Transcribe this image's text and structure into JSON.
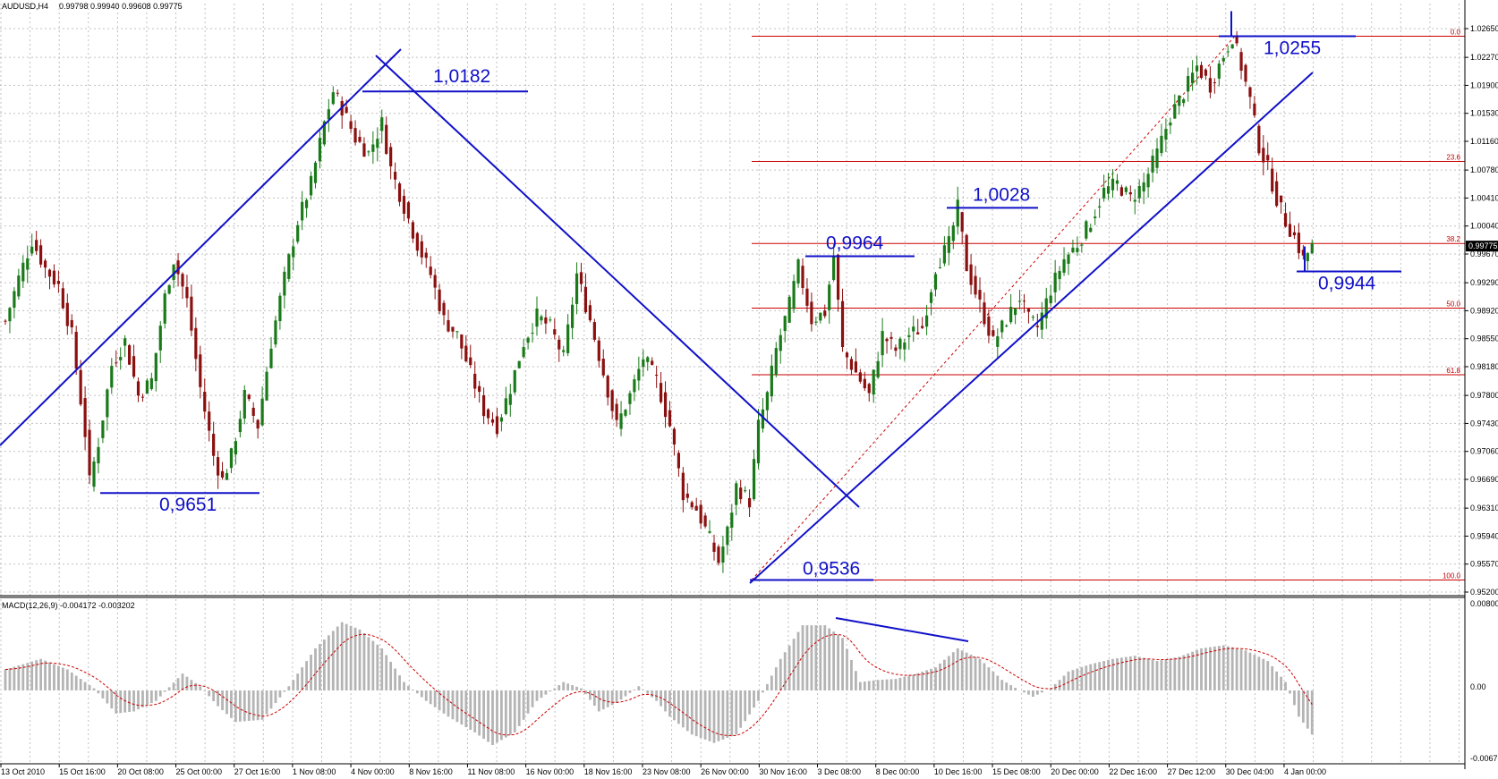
{
  "header": {
    "symbol": "AUDUSD,H4",
    "ohlc": "0.99798 0.99940 0.99608 0.99775"
  },
  "macd": {
    "label": "MACD(12,26,9) -0.004172 -0.003202",
    "scale_top": "0.008000",
    "scale_zero": "0.00",
    "scale_bottom": "-0.00673"
  },
  "colors": {
    "background": "#ffffff",
    "grid": "#c0c0c0",
    "bull_candle": "#1a7a1a",
    "bear_candle": "#8b1010",
    "trendline": "#1010c8",
    "fibonacci": "#cc0000",
    "macd_histogram": "#b4b4b4",
    "macd_signal": "#cc0000",
    "price_marker_bg": "#000000"
  },
  "chart_data": [
    {
      "type": "candlestick",
      "title": "AUDUSD,H4",
      "ylim": [
        0.952,
        1.0265
      ],
      "y_tick_labels": [
        "1.02650",
        "1.02270",
        "1.01900",
        "1.01530",
        "1.01160",
        "1.00780",
        "1.00410",
        "1.00040",
        "0.99670",
        "0.99290",
        "0.98920",
        "0.98550",
        "0.98180",
        "0.97800",
        "0.97430",
        "0.97060",
        "0.96690",
        "0.96310",
        "0.95940",
        "0.95570",
        "0.95200"
      ],
      "x_tick_labels": [
        "13 Oct 2010",
        "15 Oct 16:00",
        "20 Oct 08:00",
        "25 Oct 00:00",
        "27 Oct 16:00",
        "1 Nov 08:00",
        "4 Nov 00:00",
        "8 Nov 16:00",
        "11 Nov 08:00",
        "16 Nov 00:00",
        "18 Nov 16:00",
        "23 Nov 08:00",
        "26 Nov 00:00",
        "30 Nov 16:00",
        "3 Dec 08:00",
        "8 Dec 00:00",
        "10 Dec 16:00",
        "15 Dec 08:00",
        "20 Dec 00:00",
        "22 Dec 16:00",
        "27 Dec 12:00",
        "30 Dec 04:00",
        "4 Jan 00:00"
      ],
      "current_price": "0.99775",
      "grid": true,
      "price_path": [
        [
          0,
          0.9878
        ],
        [
          3,
          0.9935
        ],
        [
          6,
          0.9985
        ],
        [
          9,
          0.9948
        ],
        [
          12,
          0.9925
        ],
        [
          15,
          0.986
        ],
        [
          18,
          0.973
        ],
        [
          19,
          0.9665
        ],
        [
          21,
          0.9718
        ],
        [
          24,
          0.982
        ],
        [
          27,
          0.9852
        ],
        [
          30,
          0.978
        ],
        [
          33,
          0.98
        ],
        [
          36,
          0.991
        ],
        [
          38,
          0.996
        ],
        [
          41,
          0.9905
        ],
        [
          44,
          0.979
        ],
        [
          47,
          0.97
        ],
        [
          49,
          0.9668
        ],
        [
          51,
          0.97
        ],
        [
          54,
          0.978
        ],
        [
          57,
          0.974
        ],
        [
          60,
          0.985
        ],
        [
          63,
          0.9935
        ],
        [
          66,
          1.001
        ],
        [
          69,
          1.006
        ],
        [
          72,
          1.014
        ],
        [
          74,
          1.0182
        ],
        [
          76,
          1.016
        ],
        [
          79,
          1.012
        ],
        [
          82,
          1.01
        ],
        [
          85,
          1.014
        ],
        [
          87,
          1.008
        ],
        [
          90,
          1.003
        ],
        [
          93,
          0.998
        ],
        [
          96,
          0.994
        ],
        [
          99,
          0.988
        ],
        [
          102,
          0.986
        ],
        [
          105,
          0.981
        ],
        [
          108,
          0.976
        ],
        [
          111,
          0.974
        ],
        [
          114,
          0.979
        ],
        [
          117,
          0.985
        ],
        [
          120,
          0.9885
        ],
        [
          123,
          0.987
        ],
        [
          126,
          0.983
        ],
        [
          129,
          0.994
        ],
        [
          132,
          0.988
        ],
        [
          135,
          0.981
        ],
        [
          138,
          0.974
        ],
        [
          141,
          0.978
        ],
        [
          144,
          0.983
        ],
        [
          147,
          0.98
        ],
        [
          150,
          0.974
        ],
        [
          153,
          0.965
        ],
        [
          156,
          0.963
        ],
        [
          159,
          0.959
        ],
        [
          161,
          0.956
        ],
        [
          163,
          0.96
        ],
        [
          165,
          0.966
        ],
        [
          168,
          0.964
        ],
        [
          170,
          0.974
        ],
        [
          172,
          0.978
        ],
        [
          174,
          0.984
        ],
        [
          177,
          0.99
        ],
        [
          179,
          0.995
        ],
        [
          182,
          0.988
        ],
        [
          185,
          0.989
        ],
        [
          187,
          0.9964
        ],
        [
          189,
          0.984
        ],
        [
          192,
          0.981
        ],
        [
          195,
          0.978
        ],
        [
          198,
          0.986
        ],
        [
          201,
          0.984
        ],
        [
          204,
          0.986
        ],
        [
          207,
          0.987
        ],
        [
          210,
          0.995
        ],
        [
          213,
          0.998
        ],
        [
          215,
          1.0028
        ],
        [
          217,
          0.995
        ],
        [
          220,
          0.99
        ],
        [
          223,
          0.985
        ],
        [
          226,
          0.988
        ],
        [
          229,
          0.991
        ],
        [
          231,
          0.988
        ],
        [
          233,
          0.987
        ],
        [
          236,
          0.992
        ],
        [
          239,
          0.996
        ],
        [
          242,
          0.998
        ],
        [
          245,
          1.001
        ],
        [
          248,
          1.005
        ],
        [
          251,
          1.006
        ],
        [
          254,
          1.004
        ],
        [
          257,
          1.006
        ],
        [
          260,
          1.01
        ],
        [
          263,
          1.015
        ],
        [
          266,
          1.018
        ],
        [
          269,
          1.0215
        ],
        [
          272,
          1.019
        ],
        [
          275,
          1.023
        ],
        [
          277,
          1.0255
        ],
        [
          279,
          1.0215
        ],
        [
          281,
          1.017
        ],
        [
          283,
          1.011
        ],
        [
          285,
          1.008
        ],
        [
          287,
          1.004
        ],
        [
          289,
          1.001
        ],
        [
          291,
          0.999
        ],
        [
          293,
          0.996
        ],
        [
          295,
          0.9977
        ]
      ],
      "annotations": [
        {
          "text": "1,0182",
          "value": 1.0182
        },
        {
          "text": "0,9651",
          "value": 0.9651
        },
        {
          "text": "0,9964",
          "value": 0.9964
        },
        {
          "text": "1,0028",
          "value": 1.0028
        },
        {
          "text": "1,0255",
          "value": 1.0255
        },
        {
          "text": "0,9944",
          "value": 0.9944
        },
        {
          "text": "0,9536",
          "value": 0.9536
        }
      ],
      "fibonacci_levels": [
        {
          "label": "0.0",
          "value": 1.0255
        },
        {
          "label": "23.6",
          "value": 1.00894
        },
        {
          "label": "38.2",
          "value": 0.99809
        },
        {
          "label": "50.0",
          "value": 0.98955
        },
        {
          "label": "61.8",
          "value": 0.98073
        },
        {
          "label": "100.0",
          "value": 0.9536
        }
      ]
    },
    {
      "type": "macd",
      "title": "MACD(12,26,9) -0.004172 -0.003202",
      "ylim": [
        -0.00673,
        0.008
      ],
      "series": [
        {
          "values": [
            [
              0,
              0.002
            ],
            [
              8,
              0.003
            ],
            [
              14,
              0.002
            ],
            [
              20,
              0.0002
            ],
            [
              25,
              -0.0022
            ],
            [
              29,
              -0.002
            ],
            [
              34,
              -0.001
            ],
            [
              40,
              0.0016
            ],
            [
              44,
              0.0004
            ],
            [
              48,
              -0.0015
            ],
            [
              52,
              -0.003
            ],
            [
              58,
              -0.0028
            ],
            [
              64,
              0.0004
            ],
            [
              70,
              0.004
            ],
            [
              76,
              0.0065
            ],
            [
              80,
              0.0058
            ],
            [
              85,
              0.004
            ],
            [
              90,
              0.0008
            ],
            [
              95,
              -0.001
            ],
            [
              100,
              -0.0025
            ],
            [
              106,
              -0.004
            ],
            [
              110,
              -0.0052
            ],
            [
              115,
              -0.004
            ],
            [
              120,
              -0.001
            ],
            [
              126,
              0.0008
            ],
            [
              130,
              0.0002
            ],
            [
              134,
              -0.002
            ],
            [
              138,
              -0.0012
            ],
            [
              143,
              0.0004
            ],
            [
              147,
              -0.001
            ],
            [
              150,
              -0.0025
            ],
            [
              155,
              -0.0042
            ],
            [
              160,
              -0.005
            ],
            [
              165,
              -0.0042
            ],
            [
              170,
              -0.001
            ],
            [
              175,
              0.003
            ],
            [
              180,
              0.0062
            ],
            [
              185,
              0.0062
            ],
            [
              189,
              0.005
            ],
            [
              193,
              0.0008
            ],
            [
              197,
              0.001
            ],
            [
              201,
              0.0011
            ],
            [
              205,
              0.0015
            ],
            [
              210,
              0.0022
            ],
            [
              215,
              0.004
            ],
            [
              220,
              0.003
            ],
            [
              225,
              0.001
            ],
            [
              229,
              0.0
            ],
            [
              232,
              -0.0006
            ],
            [
              236,
              0.0002
            ],
            [
              240,
              0.0018
            ],
            [
              245,
              0.0025
            ],
            [
              250,
              0.003
            ],
            [
              255,
              0.0033
            ],
            [
              260,
              0.0028
            ],
            [
              265,
              0.0032
            ],
            [
              270,
              0.004
            ],
            [
              275,
              0.0043
            ],
            [
              280,
              0.0038
            ],
            [
              285,
              0.0028
            ],
            [
              289,
              0.0008
            ],
            [
              292,
              -0.0025
            ],
            [
              295,
              -0.0042
            ]
          ]
        }
      ]
    }
  ]
}
